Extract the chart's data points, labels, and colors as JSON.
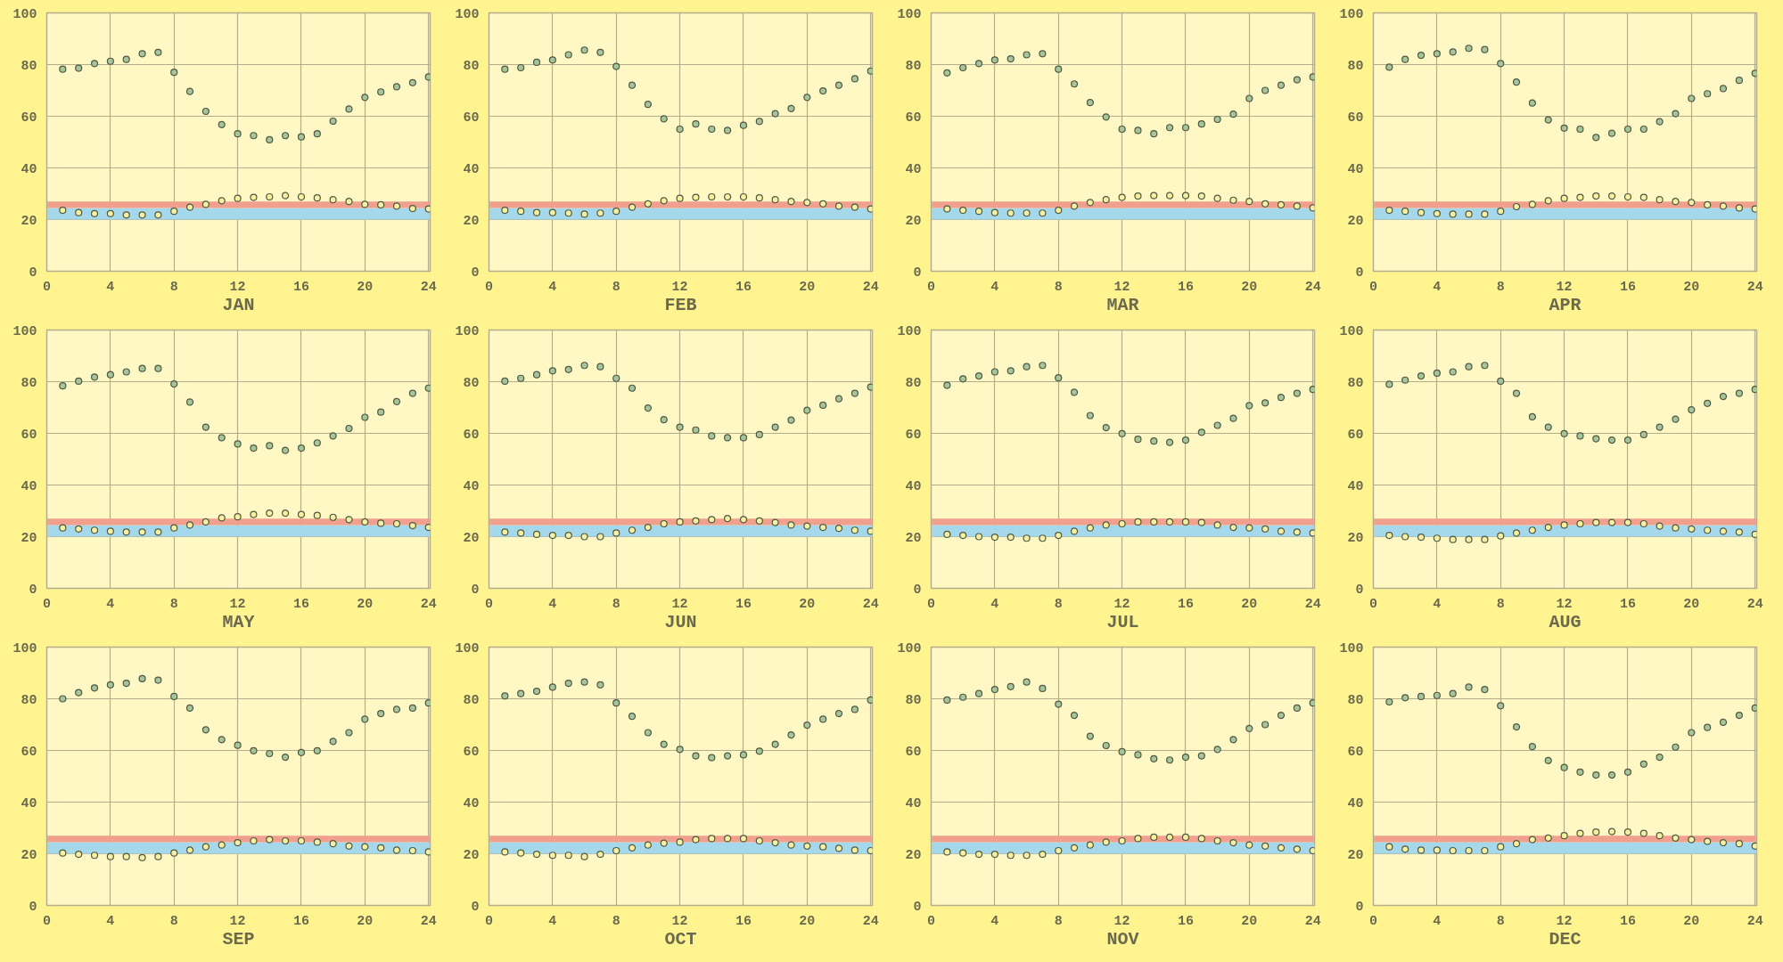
{
  "chart_data": [
    {
      "type": "scatter",
      "xlabel": "JAN",
      "x": [
        1,
        2,
        3,
        4,
        5,
        6,
        7,
        8,
        9,
        10,
        11,
        12,
        13,
        14,
        15,
        16,
        17,
        18,
        19,
        20,
        21,
        22,
        23,
        24
      ],
      "xlim": [
        0,
        24.1
      ],
      "ylim": [
        0,
        100
      ],
      "xticks": [
        0,
        4,
        8,
        12,
        16,
        20,
        24
      ],
      "yticks": [
        0,
        20,
        40,
        60,
        80,
        100
      ],
      "grid": true,
      "marker": "circle",
      "bands": [
        {
          "axis": "y",
          "from": 20,
          "to": 24.5,
          "color": "#a6d8ec"
        },
        {
          "axis": "y",
          "from": 24.5,
          "to": 27,
          "color": "#f0a08c"
        }
      ],
      "series": [
        {
          "color": "#a8c49a",
          "values": [
            78.2,
            78.6,
            80.4,
            81.3,
            82.0,
            84.2,
            84.7,
            77.0,
            69.6,
            61.9,
            56.8,
            53.2,
            52.5,
            50.9,
            52.5,
            52.0,
            53.2,
            58.1,
            62.8,
            67.3,
            69.4,
            71.4,
            73.0,
            75.2
          ]
        },
        {
          "color": "#f6f0a0",
          "values": [
            23.6,
            22.7,
            22.3,
            22.3,
            21.8,
            21.8,
            21.8,
            23.2,
            24.8,
            25.9,
            27.3,
            28.2,
            28.6,
            28.8,
            29.3,
            28.8,
            28.4,
            27.7,
            27.0,
            25.9,
            25.7,
            25.2,
            24.3,
            24.1
          ]
        }
      ]
    },
    {
      "type": "scatter",
      "xlabel": "FEB",
      "x": [
        1,
        2,
        3,
        4,
        5,
        6,
        7,
        8,
        9,
        10,
        11,
        12,
        13,
        14,
        15,
        16,
        17,
        18,
        19,
        20,
        21,
        22,
        23,
        24
      ],
      "xlim": [
        0,
        24.1
      ],
      "ylim": [
        0,
        100
      ],
      "xticks": [
        0,
        4,
        8,
        12,
        16,
        20,
        24
      ],
      "yticks": [
        0,
        20,
        40,
        60,
        80,
        100
      ],
      "grid": true,
      "marker": "circle",
      "bands": [
        {
          "axis": "y",
          "from": 20,
          "to": 24.5,
          "color": "#a6d8ec"
        },
        {
          "axis": "y",
          "from": 24.5,
          "to": 27,
          "color": "#f0a08c"
        }
      ],
      "series": [
        {
          "color": "#a8c49a",
          "values": [
            78.2,
            78.8,
            80.9,
            81.8,
            83.8,
            85.6,
            84.7,
            79.3,
            72.0,
            64.6,
            59.0,
            55.0,
            57.0,
            55.0,
            54.5,
            56.5,
            58.0,
            61.0,
            63.0,
            67.3,
            69.8,
            72.0,
            74.5,
            77.5
          ]
        },
        {
          "color": "#f6f0a0",
          "values": [
            23.6,
            23.2,
            22.7,
            22.7,
            22.5,
            22.1,
            22.5,
            23.2,
            24.8,
            26.1,
            27.3,
            28.2,
            28.6,
            28.8,
            28.8,
            28.8,
            28.4,
            27.7,
            27.0,
            26.6,
            26.1,
            25.2,
            24.8,
            24.1
          ]
        }
      ]
    },
    {
      "type": "scatter",
      "xlabel": "MAR",
      "x": [
        1,
        2,
        3,
        4,
        5,
        6,
        7,
        8,
        9,
        10,
        11,
        12,
        13,
        14,
        15,
        16,
        17,
        18,
        19,
        20,
        21,
        22,
        23,
        24
      ],
      "xlim": [
        0,
        24.1
      ],
      "ylim": [
        0,
        100
      ],
      "xticks": [
        0,
        4,
        8,
        12,
        16,
        20,
        24
      ],
      "yticks": [
        0,
        20,
        40,
        60,
        80,
        100
      ],
      "grid": true,
      "marker": "circle",
      "bands": [
        {
          "axis": "y",
          "from": 20,
          "to": 24.5,
          "color": "#a6d8ec"
        },
        {
          "axis": "y",
          "from": 24.5,
          "to": 27,
          "color": "#f0a08c"
        }
      ],
      "series": [
        {
          "color": "#a8c49a",
          "values": [
            76.8,
            78.8,
            80.4,
            81.8,
            82.2,
            83.8,
            84.2,
            78.2,
            72.5,
            65.3,
            59.7,
            55.0,
            54.5,
            53.2,
            55.6,
            55.6,
            57.0,
            58.8,
            60.8,
            66.9,
            70.0,
            72.0,
            74.1,
            75.2
          ]
        },
        {
          "color": "#f6f0a0",
          "values": [
            24.1,
            23.6,
            23.2,
            22.7,
            22.5,
            22.5,
            22.5,
            23.6,
            25.2,
            26.6,
            27.7,
            28.6,
            29.1,
            29.3,
            29.3,
            29.3,
            29.1,
            28.2,
            27.5,
            27.0,
            26.1,
            25.7,
            25.2,
            24.5
          ]
        }
      ]
    },
    {
      "type": "scatter",
      "xlabel": "APR",
      "x": [
        1,
        2,
        3,
        4,
        5,
        6,
        7,
        8,
        9,
        10,
        11,
        12,
        13,
        14,
        15,
        16,
        17,
        18,
        19,
        20,
        21,
        22,
        23,
        24
      ],
      "xlim": [
        0,
        24.1
      ],
      "ylim": [
        0,
        100
      ],
      "xticks": [
        0,
        4,
        8,
        12,
        16,
        20,
        24
      ],
      "yticks": [
        0,
        20,
        40,
        60,
        80,
        100
      ],
      "grid": true,
      "marker": "circle",
      "bands": [
        {
          "axis": "y",
          "from": 20,
          "to": 24.5,
          "color": "#a6d8ec"
        },
        {
          "axis": "y",
          "from": 24.5,
          "to": 27,
          "color": "#f0a08c"
        }
      ],
      "series": [
        {
          "color": "#a8c49a",
          "values": [
            79.0,
            82.0,
            83.6,
            84.2,
            84.9,
            86.3,
            85.8,
            80.4,
            73.2,
            65.1,
            58.6,
            55.4,
            55.0,
            51.8,
            53.4,
            55.0,
            55.0,
            57.9,
            61.0,
            66.9,
            68.7,
            70.7,
            73.9,
            76.6
          ]
        },
        {
          "color": "#f6f0a0",
          "values": [
            23.6,
            23.2,
            22.7,
            22.3,
            22.1,
            22.1,
            22.1,
            23.2,
            25.0,
            25.9,
            27.3,
            28.2,
            28.6,
            29.1,
            29.1,
            28.8,
            28.6,
            27.7,
            27.0,
            26.6,
            25.7,
            25.2,
            24.5,
            24.1
          ]
        }
      ]
    },
    {
      "type": "scatter",
      "xlabel": "MAY",
      "x": [
        1,
        2,
        3,
        4,
        5,
        6,
        7,
        8,
        9,
        10,
        11,
        12,
        13,
        14,
        15,
        16,
        17,
        18,
        19,
        20,
        21,
        22,
        23,
        24
      ],
      "xlim": [
        0,
        24.1
      ],
      "ylim": [
        0,
        100
      ],
      "xticks": [
        0,
        4,
        8,
        12,
        16,
        20,
        24
      ],
      "yticks": [
        0,
        20,
        40,
        60,
        80,
        100
      ],
      "grid": true,
      "marker": "circle",
      "bands": [
        {
          "axis": "y",
          "from": 20,
          "to": 24.5,
          "color": "#a6d8ec"
        },
        {
          "axis": "y",
          "from": 24.5,
          "to": 27,
          "color": "#f0a08c"
        }
      ],
      "series": [
        {
          "color": "#a8c49a",
          "values": [
            78.4,
            80.2,
            81.8,
            82.7,
            83.8,
            85.1,
            85.1,
            79.1,
            72.1,
            62.4,
            58.3,
            55.9,
            54.3,
            55.2,
            53.4,
            54.3,
            56.3,
            59.0,
            61.9,
            66.2,
            68.2,
            72.3,
            75.5,
            77.5
          ]
        },
        {
          "color": "#f6f0a0",
          "values": [
            23.4,
            23.0,
            22.5,
            22.1,
            21.8,
            21.8,
            21.8,
            23.4,
            24.5,
            25.7,
            27.3,
            27.7,
            28.6,
            29.1,
            29.1,
            28.6,
            28.2,
            27.5,
            26.6,
            25.7,
            25.2,
            25.0,
            24.3,
            23.6
          ]
        }
      ]
    },
    {
      "type": "scatter",
      "xlabel": "JUN",
      "x": [
        1,
        2,
        3,
        4,
        5,
        6,
        7,
        8,
        9,
        10,
        11,
        12,
        13,
        14,
        15,
        16,
        17,
        18,
        19,
        20,
        21,
        22,
        23,
        24
      ],
      "xlim": [
        0,
        24.1
      ],
      "ylim": [
        0,
        100
      ],
      "xticks": [
        0,
        4,
        8,
        12,
        16,
        20,
        24
      ],
      "yticks": [
        0,
        20,
        40,
        60,
        80,
        100
      ],
      "grid": true,
      "marker": "circle",
      "bands": [
        {
          "axis": "y",
          "from": 20,
          "to": 24.5,
          "color": "#a6d8ec"
        },
        {
          "axis": "y",
          "from": 24.5,
          "to": 27,
          "color": "#f0a08c"
        }
      ],
      "series": [
        {
          "color": "#a8c49a",
          "values": [
            80.2,
            81.3,
            82.7,
            84.2,
            84.7,
            86.3,
            85.8,
            81.3,
            77.5,
            69.8,
            65.3,
            62.4,
            61.3,
            59.0,
            58.3,
            58.3,
            59.5,
            62.4,
            65.1,
            68.9,
            70.9,
            73.4,
            75.5,
            77.9
          ]
        },
        {
          "color": "#f6f0a0",
          "values": [
            21.8,
            21.4,
            20.9,
            20.5,
            20.5,
            20.0,
            20.0,
            21.4,
            22.5,
            23.6,
            25.0,
            25.7,
            26.1,
            26.6,
            27.0,
            26.6,
            26.1,
            25.5,
            24.5,
            24.1,
            23.6,
            23.2,
            22.5,
            22.1
          ]
        }
      ]
    },
    {
      "type": "scatter",
      "xlabel": "JUL",
      "x": [
        1,
        2,
        3,
        4,
        5,
        6,
        7,
        8,
        9,
        10,
        11,
        12,
        13,
        14,
        15,
        16,
        17,
        18,
        19,
        20,
        21,
        22,
        23,
        24
      ],
      "xlim": [
        0,
        24.1
      ],
      "ylim": [
        0,
        100
      ],
      "xticks": [
        0,
        4,
        8,
        12,
        16,
        20,
        24
      ],
      "yticks": [
        0,
        20,
        40,
        60,
        80,
        100
      ],
      "grid": true,
      "marker": "circle",
      "bands": [
        {
          "axis": "y",
          "from": 20,
          "to": 24.5,
          "color": "#a6d8ec"
        },
        {
          "axis": "y",
          "from": 24.5,
          "to": 27,
          "color": "#f0a08c"
        }
      ],
      "series": [
        {
          "color": "#a8c49a",
          "values": [
            78.6,
            81.1,
            82.2,
            83.8,
            84.2,
            85.8,
            86.3,
            81.5,
            75.9,
            66.9,
            62.2,
            59.9,
            57.7,
            57.0,
            56.5,
            57.4,
            60.4,
            63.1,
            65.8,
            70.7,
            71.8,
            73.9,
            75.5,
            77.0
          ]
        },
        {
          "color": "#f6f0a0",
          "values": [
            20.9,
            20.5,
            20.0,
            19.8,
            19.8,
            19.4,
            19.4,
            20.5,
            22.1,
            23.4,
            24.5,
            25.0,
            25.7,
            25.7,
            25.7,
            25.7,
            25.5,
            24.5,
            23.6,
            23.4,
            23.0,
            22.1,
            21.8,
            21.4
          ]
        }
      ]
    },
    {
      "type": "scatter",
      "xlabel": "AUG",
      "x": [
        1,
        2,
        3,
        4,
        5,
        6,
        7,
        8,
        9,
        10,
        11,
        12,
        13,
        14,
        15,
        16,
        17,
        18,
        19,
        20,
        21,
        22,
        23,
        24
      ],
      "xlim": [
        0,
        24.1
      ],
      "ylim": [
        0,
        100
      ],
      "xticks": [
        0,
        4,
        8,
        12,
        16,
        20,
        24
      ],
      "yticks": [
        0,
        20,
        40,
        60,
        80,
        100
      ],
      "grid": true,
      "marker": "circle",
      "bands": [
        {
          "axis": "y",
          "from": 20,
          "to": 24.5,
          "color": "#a6d8ec"
        },
        {
          "axis": "y",
          "from": 24.5,
          "to": 27,
          "color": "#f0a08c"
        }
      ],
      "series": [
        {
          "color": "#a8c49a",
          "values": [
            79.0,
            80.6,
            82.2,
            83.3,
            83.8,
            85.8,
            86.3,
            80.2,
            75.5,
            66.4,
            62.4,
            59.9,
            59.0,
            57.9,
            57.4,
            57.4,
            59.5,
            62.4,
            65.5,
            69.1,
            71.6,
            74.3,
            75.5,
            77.0
          ]
        },
        {
          "color": "#f6f0a0",
          "values": [
            20.5,
            20.0,
            19.8,
            19.4,
            18.9,
            18.9,
            18.9,
            20.3,
            21.4,
            22.5,
            23.6,
            24.5,
            25.0,
            25.5,
            25.5,
            25.5,
            25.0,
            24.1,
            23.4,
            23.0,
            22.5,
            22.1,
            21.8,
            20.9
          ]
        }
      ]
    },
    {
      "type": "scatter",
      "xlabel": "SEP",
      "x": [
        1,
        2,
        3,
        4,
        5,
        6,
        7,
        8,
        9,
        10,
        11,
        12,
        13,
        14,
        15,
        16,
        17,
        18,
        19,
        20,
        21,
        22,
        23,
        24
      ],
      "xlim": [
        0,
        24.1
      ],
      "ylim": [
        0,
        100
      ],
      "xticks": [
        0,
        4,
        8,
        12,
        16,
        20,
        24
      ],
      "yticks": [
        0,
        20,
        40,
        60,
        80,
        100
      ],
      "grid": true,
      "marker": "circle",
      "bands": [
        {
          "axis": "y",
          "from": 20,
          "to": 24.5,
          "color": "#a6d8ec"
        },
        {
          "axis": "y",
          "from": 24.5,
          "to": 27,
          "color": "#f0a08c"
        }
      ],
      "series": [
        {
          "color": "#a8c49a",
          "values": [
            80.0,
            82.4,
            84.2,
            85.4,
            86.0,
            87.8,
            87.2,
            80.9,
            76.4,
            68.0,
            64.2,
            62.0,
            59.9,
            58.8,
            57.4,
            59.2,
            59.9,
            63.5,
            66.9,
            72.1,
            74.3,
            75.9,
            76.4,
            78.4
          ]
        },
        {
          "color": "#f6f0a0",
          "values": [
            20.3,
            19.8,
            19.4,
            18.9,
            18.9,
            18.5,
            18.9,
            20.3,
            21.4,
            22.7,
            23.4,
            24.3,
            25.0,
            25.5,
            25.0,
            25.0,
            24.5,
            23.9,
            23.0,
            22.7,
            22.3,
            21.4,
            21.2,
            20.7
          ]
        }
      ]
    },
    {
      "type": "scatter",
      "xlabel": "OCT",
      "x": [
        1,
        2,
        3,
        4,
        5,
        6,
        7,
        8,
        9,
        10,
        11,
        12,
        13,
        14,
        15,
        16,
        17,
        18,
        19,
        20,
        21,
        22,
        23,
        24
      ],
      "xlim": [
        0,
        24.1
      ],
      "ylim": [
        0,
        100
      ],
      "xticks": [
        0,
        4,
        8,
        12,
        16,
        20,
        24
      ],
      "yticks": [
        0,
        20,
        40,
        60,
        80,
        100
      ],
      "grid": true,
      "marker": "circle",
      "bands": [
        {
          "axis": "y",
          "from": 20,
          "to": 24.5,
          "color": "#a6d8ec"
        },
        {
          "axis": "y",
          "from": 24.5,
          "to": 27,
          "color": "#f0a08c"
        }
      ],
      "series": [
        {
          "color": "#a8c49a",
          "values": [
            81.1,
            82.0,
            82.9,
            84.5,
            86.0,
            86.5,
            85.4,
            78.4,
            73.2,
            66.9,
            62.4,
            60.4,
            57.9,
            57.2,
            57.9,
            58.3,
            59.7,
            62.4,
            66.0,
            69.8,
            72.1,
            74.3,
            75.9,
            79.5
          ]
        },
        {
          "color": "#f6f0a0",
          "values": [
            20.7,
            20.3,
            19.8,
            19.4,
            19.4,
            18.9,
            19.8,
            21.2,
            22.3,
            23.4,
            24.1,
            24.5,
            25.5,
            25.9,
            25.9,
            25.9,
            25.0,
            24.3,
            23.4,
            23.0,
            22.7,
            22.1,
            21.4,
            21.2
          ]
        }
      ]
    },
    {
      "type": "scatter",
      "xlabel": "NOV",
      "x": [
        1,
        2,
        3,
        4,
        5,
        6,
        7,
        8,
        9,
        10,
        11,
        12,
        13,
        14,
        15,
        16,
        17,
        18,
        19,
        20,
        21,
        22,
        23,
        24
      ],
      "xlim": [
        0,
        24.1
      ],
      "ylim": [
        0,
        100
      ],
      "xticks": [
        0,
        4,
        8,
        12,
        16,
        20,
        24
      ],
      "yticks": [
        0,
        20,
        40,
        60,
        80,
        100
      ],
      "grid": true,
      "marker": "circle",
      "bands": [
        {
          "axis": "y",
          "from": 20,
          "to": 24.5,
          "color": "#a6d8ec"
        },
        {
          "axis": "y",
          "from": 24.5,
          "to": 27,
          "color": "#f0a08c"
        }
      ],
      "series": [
        {
          "color": "#a8c49a",
          "values": [
            79.5,
            80.6,
            82.0,
            83.6,
            84.7,
            86.5,
            84.0,
            77.9,
            73.6,
            65.5,
            61.9,
            59.5,
            58.3,
            56.8,
            56.3,
            57.4,
            57.9,
            60.4,
            64.2,
            68.5,
            70.0,
            73.6,
            76.4,
            78.4
          ]
        },
        {
          "color": "#f6f0a0",
          "values": [
            20.7,
            20.3,
            19.8,
            19.8,
            19.4,
            19.4,
            19.8,
            21.2,
            22.3,
            23.4,
            24.5,
            25.0,
            25.9,
            26.4,
            26.4,
            26.4,
            25.9,
            25.0,
            24.3,
            23.4,
            23.0,
            22.3,
            21.8,
            21.2
          ]
        }
      ]
    },
    {
      "type": "scatter",
      "xlabel": "DEC",
      "x": [
        1,
        2,
        3,
        4,
        5,
        6,
        7,
        8,
        9,
        10,
        11,
        12,
        13,
        14,
        15,
        16,
        17,
        18,
        19,
        20,
        21,
        22,
        23,
        24
      ],
      "xlim": [
        0,
        24.1
      ],
      "ylim": [
        0,
        100
      ],
      "xticks": [
        0,
        4,
        8,
        12,
        16,
        20,
        24
      ],
      "yticks": [
        0,
        20,
        40,
        60,
        80,
        100
      ],
      "grid": true,
      "marker": "circle",
      "bands": [
        {
          "axis": "y",
          "from": 20,
          "to": 24.5,
          "color": "#a6d8ec"
        },
        {
          "axis": "y",
          "from": 24.5,
          "to": 27,
          "color": "#f0a08c"
        }
      ],
      "series": [
        {
          "color": "#a8c49a",
          "values": [
            78.8,
            80.4,
            80.9,
            81.3,
            82.0,
            84.5,
            83.6,
            77.3,
            69.1,
            61.5,
            56.1,
            53.4,
            51.6,
            50.5,
            50.5,
            51.6,
            54.7,
            57.4,
            61.3,
            66.9,
            68.9,
            70.9,
            73.6,
            76.4
          ]
        },
        {
          "color": "#f6f0a0",
          "values": [
            22.7,
            21.8,
            21.4,
            21.4,
            21.2,
            21.2,
            21.2,
            22.7,
            23.9,
            25.5,
            26.1,
            27.0,
            27.9,
            28.4,
            28.6,
            28.4,
            27.9,
            27.0,
            26.1,
            25.5,
            24.8,
            24.3,
            23.9,
            23.0
          ]
        }
      ]
    }
  ]
}
